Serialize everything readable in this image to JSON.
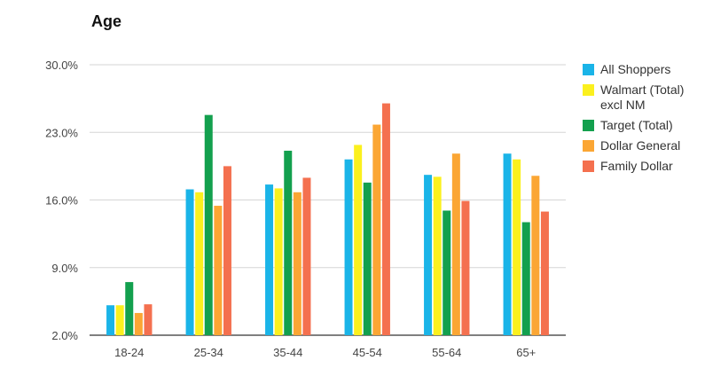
{
  "chart_data": {
    "type": "bar",
    "title": "Age",
    "xlabel": "",
    "ylabel": "",
    "categories": [
      "18-24",
      "25-34",
      "35-44",
      "45-54",
      "55-64",
      "65+"
    ],
    "ylim": [
      2.0,
      30.0
    ],
    "yticks": [
      "2.0%",
      "9.0%",
      "16.0%",
      "23.0%",
      "30.0%"
    ],
    "ytick_values": [
      2.0,
      9.0,
      16.0,
      23.0,
      30.0
    ],
    "grid": true,
    "legend_position": "right",
    "series": [
      {
        "name": "All Shoppers",
        "color": "#1ab4e8",
        "values": [
          5.1,
          17.1,
          17.6,
          20.2,
          18.6,
          20.8
        ]
      },
      {
        "name": "Walmart (Total) excl NM",
        "color": "#fbf01e",
        "values": [
          5.1,
          16.8,
          17.2,
          21.7,
          18.4,
          20.2
        ]
      },
      {
        "name": "Target (Total)",
        "color": "#13a04e",
        "values": [
          7.5,
          24.8,
          21.1,
          17.8,
          14.9,
          13.7
        ]
      },
      {
        "name": "Dollar General",
        "color": "#fba634",
        "values": [
          4.3,
          15.4,
          16.8,
          23.8,
          20.8,
          18.5
        ]
      },
      {
        "name": "Family Dollar",
        "color": "#f4704f",
        "values": [
          5.2,
          19.5,
          18.3,
          26.0,
          15.9,
          14.8
        ]
      }
    ]
  }
}
